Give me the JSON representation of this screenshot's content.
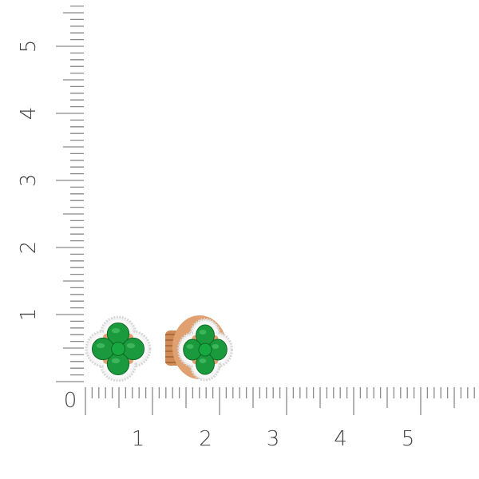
{
  "ruler": {
    "vertical_labels": [
      "0",
      "1",
      "2",
      "3",
      "4",
      "5"
    ],
    "horizontal_labels": [
      "1",
      "2",
      "3",
      "4",
      "5"
    ],
    "tick_color": "#8a8a8a",
    "label_color": "#444444"
  },
  "product": {
    "type": "clover stud earrings",
    "stone_color": "#1a9a3c",
    "metal_color": "#e0a070",
    "halo_color": "#d8d8d8"
  }
}
